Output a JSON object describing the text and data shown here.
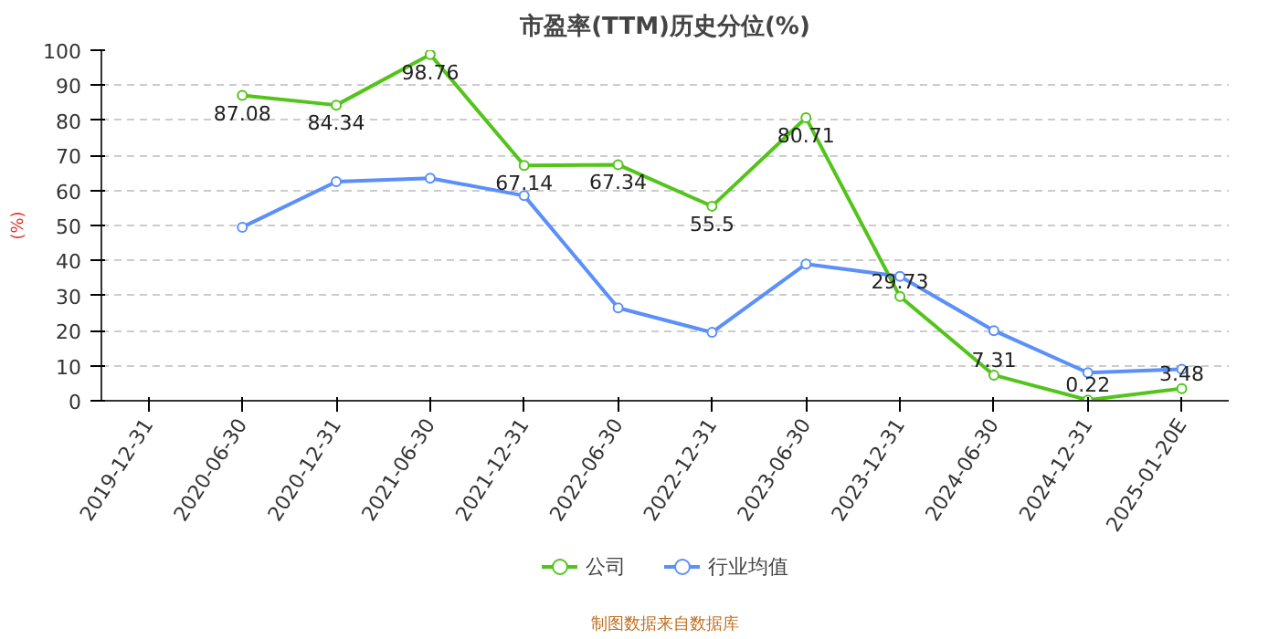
{
  "chart_data": {
    "type": "line",
    "title": "市盈率(TTM)历史分位(%)",
    "ylabel": "(%)",
    "categories": [
      "2019-12-31",
      "2020-06-30",
      "2020-12-31",
      "2021-06-30",
      "2021-12-31",
      "2022-06-30",
      "2022-12-31",
      "2023-06-30",
      "2023-12-31",
      "2024-06-30",
      "2024-12-31",
      "2025-01-20E"
    ],
    "series": [
      {
        "name": "公司",
        "color": "#52c41a",
        "values": [
          null,
          87.08,
          84.34,
          98.76,
          67.14,
          67.34,
          55.5,
          80.71,
          29.73,
          7.31,
          0.22,
          3.48
        ],
        "value_labels": [
          null,
          "87.08",
          "84.34",
          "98.76",
          "67.14",
          "67.34",
          "55.5",
          "80.71",
          "29.73",
          "7.31",
          "0.22",
          "3.48"
        ]
      },
      {
        "name": "行业均值",
        "color": "#5b8ff9",
        "values": [
          null,
          49.5,
          62.5,
          63.5,
          58.5,
          26.5,
          19.5,
          39,
          35.5,
          20,
          8,
          9
        ]
      }
    ],
    "ylim": [
      0,
      100
    ],
    "yticks": [
      0,
      10,
      20,
      30,
      40,
      50,
      60,
      70,
      80,
      90,
      100
    ],
    "grid": "y",
    "legend": "bottom",
    "marker": "circle",
    "line_style": "solid",
    "annotations": [
      "制图数据来自数据库"
    ]
  }
}
